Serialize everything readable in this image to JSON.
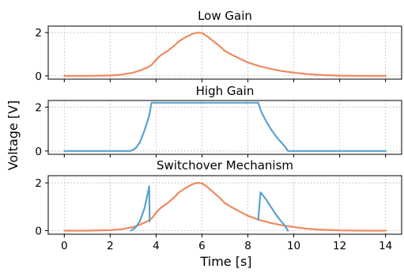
{
  "chart_data": [
    {
      "type": "line",
      "title": "Low Gain",
      "xlim": [
        -0.7,
        14.7
      ],
      "ylim": [
        -0.15,
        2.3
      ],
      "yticks": [
        0,
        2
      ],
      "xticks": [
        0,
        2,
        4,
        6,
        8,
        10,
        12,
        14
      ],
      "grid": true,
      "series": [
        {
          "color": "#ef8a5f",
          "x": [
            0,
            1,
            2,
            2.5,
            3,
            3.3,
            3.6,
            3.8,
            4.0,
            4.2,
            4.5,
            4.8,
            5.0,
            5.3,
            5.6,
            5.8,
            6.0,
            6.2,
            6.5,
            6.8,
            7.0,
            7.3,
            7.6,
            8.0,
            8.5,
            9.0,
            9.5,
            10,
            10.5,
            11,
            11.5,
            12,
            13,
            14
          ],
          "y": [
            0,
            0,
            0.02,
            0.06,
            0.15,
            0.25,
            0.38,
            0.5,
            0.75,
            0.95,
            1.15,
            1.4,
            1.6,
            1.8,
            1.95,
            2.0,
            1.98,
            1.85,
            1.6,
            1.35,
            1.15,
            0.98,
            0.82,
            0.62,
            0.45,
            0.32,
            0.22,
            0.15,
            0.09,
            0.05,
            0.03,
            0.01,
            0,
            0
          ]
        }
      ]
    },
    {
      "type": "line",
      "title": "High Gain",
      "xlim": [
        -0.7,
        14.7
      ],
      "ylim": [
        -0.15,
        2.3
      ],
      "yticks": [
        0,
        2
      ],
      "xticks": [
        0,
        2,
        4,
        6,
        8,
        10,
        12,
        14
      ],
      "grid": true,
      "series": [
        {
          "color": "#5aa3cf",
          "x": [
            0,
            1,
            2,
            2.9,
            3.1,
            3.3,
            3.5,
            3.7,
            3.8,
            8.45,
            8.6,
            8.8,
            9.0,
            9.2,
            9.4,
            9.6,
            9.75,
            10,
            12,
            14
          ],
          "y": [
            0,
            0,
            0,
            0,
            0.12,
            0.4,
            0.95,
            1.6,
            2.2,
            2.2,
            1.75,
            1.35,
            1.0,
            0.7,
            0.45,
            0.22,
            0,
            0,
            0,
            0
          ]
        }
      ]
    },
    {
      "type": "line",
      "title": "Switchover Mechanism",
      "xlim": [
        -0.7,
        14.7
      ],
      "ylim": [
        -0.15,
        2.3
      ],
      "yticks": [
        0,
        2
      ],
      "xticks": [
        0,
        2,
        4,
        6,
        8,
        10,
        12,
        14
      ],
      "xlabel": "Time [s]",
      "grid": true,
      "series": [
        {
          "color": "#ef8a5f",
          "x": [
            0,
            1,
            2,
            2.5,
            3,
            3.3,
            3.6,
            3.8,
            4.0,
            4.2,
            4.5,
            4.8,
            5.0,
            5.3,
            5.6,
            5.8,
            6.0,
            6.2,
            6.5,
            6.8,
            7.0,
            7.3,
            7.6,
            8.0,
            8.5,
            9.0,
            9.5,
            10,
            10.5,
            11,
            11.5,
            12,
            13,
            14
          ],
          "y": [
            0,
            0,
            0.02,
            0.06,
            0.15,
            0.25,
            0.38,
            0.5,
            0.75,
            0.95,
            1.15,
            1.4,
            1.6,
            1.8,
            1.95,
            2.0,
            1.98,
            1.85,
            1.6,
            1.35,
            1.15,
            0.98,
            0.82,
            0.62,
            0.45,
            0.32,
            0.22,
            0.15,
            0.09,
            0.05,
            0.03,
            0.01,
            0,
            0
          ]
        },
        {
          "color": "#5aa3cf",
          "segments": [
            {
              "x": [
                2.9,
                3.1,
                3.3,
                3.5,
                3.7
              ],
              "y": [
                0,
                0.12,
                0.4,
                0.95,
                1.85
              ]
            },
            {
              "x": [
                3.7,
                3.72
              ],
              "y": [
                1.85,
                0.38
              ]
            },
            {
              "x": [
                8.45,
                8.55,
                8.6,
                8.8,
                9.0,
                9.2,
                9.4,
                9.6,
                9.75
              ],
              "y": [
                0.45,
                1.6,
                1.55,
                1.3,
                1.0,
                0.7,
                0.45,
                0.22,
                0
              ]
            }
          ]
        }
      ]
    }
  ],
  "ylabel": "Voltage [V]"
}
